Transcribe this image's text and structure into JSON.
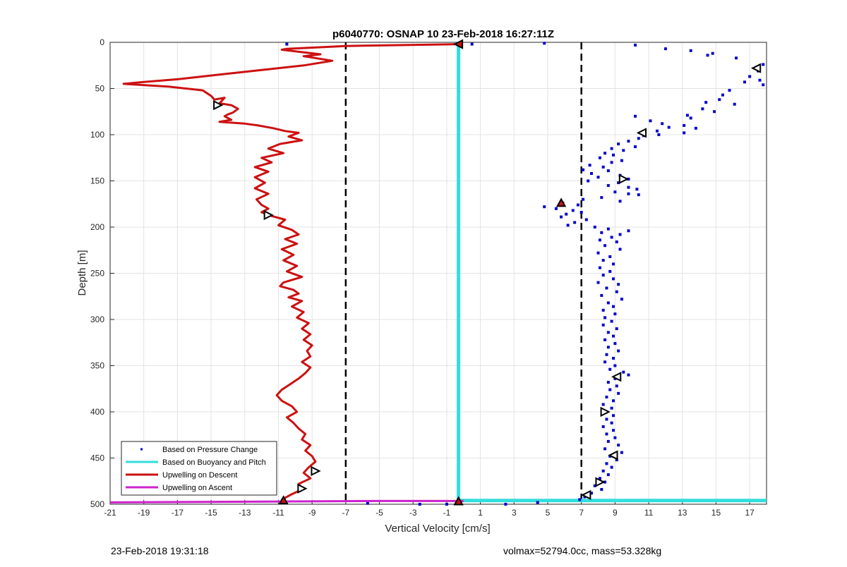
{
  "chart_data": {
    "type": "line",
    "title": "p6040770: OSNAP 10 23-Feb-2018 16:27:11Z",
    "xlabel": "Vertical Velocity [cm/s]",
    "ylabel": "Depth [m]",
    "xlim": [
      -21,
      18
    ],
    "ylim": [
      0,
      500
    ],
    "y_reversed": true,
    "grid": true,
    "xticks": [
      -21,
      -19,
      -17,
      -15,
      -13,
      -11,
      -9,
      -7,
      -5,
      -3,
      -1,
      1,
      3,
      5,
      7,
      9,
      11,
      13,
      15,
      17
    ],
    "yticks": [
      0,
      50,
      100,
      150,
      200,
      250,
      300,
      350,
      400,
      450,
      500
    ],
    "legend_position": "bottom-left",
    "colors": {
      "pressure": "#0000cc",
      "buoyancy": "#33dddd",
      "descent": "#cc1111",
      "ascent": "#cc22cc",
      "threshold": "#000000"
    },
    "thresholds": [
      -7,
      7
    ],
    "series": [
      {
        "name": "Based on Pressure Change",
        "style": "dots",
        "points": [
          [
            -10.5,
            2
          ],
          [
            -0.3,
            2
          ],
          [
            0.5,
            2
          ],
          [
            4.8,
            1
          ],
          [
            10.2,
            3
          ],
          [
            12,
            7
          ],
          [
            13.5,
            9
          ],
          [
            14.8,
            12
          ],
          [
            14.5,
            14
          ],
          [
            16.2,
            17
          ],
          [
            17.8,
            24
          ],
          [
            17.4,
            28
          ],
          [
            17.5,
            31
          ],
          [
            17,
            37
          ],
          [
            17.6,
            41
          ],
          [
            16.7,
            43
          ],
          [
            17.8,
            46
          ],
          [
            15.8,
            52
          ],
          [
            15.4,
            57
          ],
          [
            15.2,
            62
          ],
          [
            14.4,
            65
          ],
          [
            16.1,
            67
          ],
          [
            14.2,
            72
          ],
          [
            14.9,
            75
          ],
          [
            13.3,
            79
          ],
          [
            10.2,
            80
          ],
          [
            13.5,
            82
          ],
          [
            11.1,
            85
          ],
          [
            11.8,
            88
          ],
          [
            13.1,
            90
          ],
          [
            12.2,
            92
          ],
          [
            13.8,
            93
          ],
          [
            11.5,
            96
          ],
          [
            13.1,
            98
          ],
          [
            11.6,
            100
          ],
          [
            10.7,
            101
          ],
          [
            10.4,
            104
          ],
          [
            9.8,
            107
          ],
          [
            9.2,
            110
          ],
          [
            10.2,
            113
          ],
          [
            8.8,
            115
          ],
          [
            9.5,
            117
          ],
          [
            8.4,
            120
          ],
          [
            8.9,
            122
          ],
          [
            8.1,
            125
          ],
          [
            9.4,
            128
          ],
          [
            8.8,
            130
          ],
          [
            7.5,
            133
          ],
          [
            8.3,
            135
          ],
          [
            7.1,
            138
          ],
          [
            8.6,
            139
          ],
          [
            7.6,
            142
          ],
          [
            9.3,
            144
          ],
          [
            8,
            146
          ],
          [
            9.8,
            148
          ],
          [
            7.4,
            150
          ],
          [
            9.2,
            152
          ],
          [
            8.6,
            155
          ],
          [
            9.8,
            157
          ],
          [
            10.3,
            159
          ],
          [
            9,
            162
          ],
          [
            9.8,
            164
          ],
          [
            10.4,
            165
          ],
          [
            8.2,
            168
          ],
          [
            7.1,
            170
          ],
          [
            9.3,
            172
          ],
          [
            5.9,
            174
          ],
          [
            6.8,
            176
          ],
          [
            4.8,
            178
          ],
          [
            5.5,
            180
          ],
          [
            6.5,
            182
          ],
          [
            7,
            184
          ],
          [
            6.1,
            186
          ],
          [
            5.8,
            189
          ],
          [
            7.3,
            192
          ],
          [
            6.6,
            195
          ],
          [
            6.2,
            198
          ],
          [
            7.8,
            200
          ],
          [
            8.6,
            202
          ],
          [
            9.8,
            204
          ],
          [
            8.2,
            206
          ],
          [
            9.3,
            208
          ],
          [
            8.8,
            211
          ],
          [
            8.1,
            214
          ],
          [
            9.1,
            216
          ],
          [
            8.4,
            220
          ],
          [
            9.3,
            224
          ],
          [
            8,
            228
          ],
          [
            8.7,
            232
          ],
          [
            8.3,
            236
          ],
          [
            8.9,
            240
          ],
          [
            8.1,
            244
          ],
          [
            8.7,
            248
          ],
          [
            8.3,
            252
          ],
          [
            8.9,
            256
          ],
          [
            8,
            260
          ],
          [
            9.2,
            262
          ],
          [
            8.5,
            266
          ],
          [
            9.1,
            270
          ],
          [
            8.2,
            274
          ],
          [
            9.4,
            278
          ],
          [
            8.6,
            282
          ],
          [
            8.9,
            286
          ],
          [
            8.3,
            290
          ],
          [
            9,
            294
          ],
          [
            8.4,
            298
          ],
          [
            8.8,
            302
          ],
          [
            8.3,
            306
          ],
          [
            9.1,
            310
          ],
          [
            8.6,
            314
          ],
          [
            8.9,
            318
          ],
          [
            8.4,
            322
          ],
          [
            9,
            326
          ],
          [
            8.6,
            330
          ],
          [
            9.2,
            334
          ],
          [
            8.5,
            338
          ],
          [
            8.9,
            342
          ],
          [
            8.4,
            346
          ],
          [
            9,
            350
          ],
          [
            8.7,
            354
          ],
          [
            9.5,
            357
          ],
          [
            9.8,
            360
          ],
          [
            9,
            364
          ],
          [
            8.6,
            368
          ],
          [
            9.1,
            372
          ],
          [
            8.7,
            376
          ],
          [
            9.2,
            380
          ],
          [
            8.5,
            384
          ],
          [
            8.9,
            388
          ],
          [
            8.3,
            392
          ],
          [
            8.8,
            396
          ],
          [
            8.4,
            400
          ],
          [
            8.9,
            404
          ],
          [
            8.5,
            408
          ],
          [
            8.8,
            412
          ],
          [
            8.3,
            416
          ],
          [
            8.9,
            420
          ],
          [
            8.5,
            424
          ],
          [
            9,
            428
          ],
          [
            8.6,
            432
          ],
          [
            9.2,
            436
          ],
          [
            8.4,
            440
          ],
          [
            9.4,
            444
          ],
          [
            8.7,
            448
          ],
          [
            9.1,
            452
          ],
          [
            8.5,
            456
          ],
          [
            8.8,
            460
          ],
          [
            8.3,
            464
          ],
          [
            8.6,
            468
          ],
          [
            8.1,
            472
          ],
          [
            8.4,
            476
          ],
          [
            7.8,
            480
          ],
          [
            8.2,
            484
          ],
          [
            7.6,
            488
          ],
          [
            7.2,
            492
          ],
          [
            6.9,
            495
          ],
          [
            4.4,
            498
          ],
          [
            2.5,
            500
          ],
          [
            -2.6,
            500
          ],
          [
            -5.7,
            499
          ],
          [
            -1,
            500
          ]
        ]
      },
      {
        "name": "Based on Buoyancy and Pitch",
        "style": "line",
        "points": [
          [
            -0.3,
            0
          ],
          [
            -0.3,
            496
          ],
          [
            18,
            496
          ]
        ]
      },
      {
        "name": "Upwelling on Descent",
        "style": "line",
        "points": [
          [
            -0.3,
            2
          ],
          [
            -7,
            4
          ],
          [
            -10.5,
            7
          ],
          [
            -10.8,
            8
          ],
          [
            -8.5,
            13
          ],
          [
            -9.5,
            15
          ],
          [
            -7.8,
            20
          ],
          [
            -9.5,
            25
          ],
          [
            -12,
            30
          ],
          [
            -14.5,
            35
          ],
          [
            -17,
            40
          ],
          [
            -19,
            43
          ],
          [
            -20.2,
            45
          ],
          [
            -17.5,
            48
          ],
          [
            -15.5,
            52
          ],
          [
            -15,
            58
          ],
          [
            -14.8,
            62
          ],
          [
            -14.2,
            60
          ],
          [
            -14.5,
            66
          ],
          [
            -13.8,
            68
          ],
          [
            -13.4,
            72
          ],
          [
            -13.7,
            76
          ],
          [
            -14,
            78
          ],
          [
            -14.2,
            80
          ],
          [
            -13.8,
            84
          ],
          [
            -14.5,
            86
          ],
          [
            -13,
            88
          ],
          [
            -12.2,
            90
          ],
          [
            -11.3,
            93
          ],
          [
            -10.6,
            96
          ],
          [
            -9.8,
            98
          ],
          [
            -10.4,
            102
          ],
          [
            -9.6,
            106
          ],
          [
            -10.9,
            110
          ],
          [
            -11.6,
            115
          ],
          [
            -10.7,
            120
          ],
          [
            -12,
            125
          ],
          [
            -11.4,
            130
          ],
          [
            -12.4,
            135
          ],
          [
            -11.6,
            140
          ],
          [
            -12.4,
            146
          ],
          [
            -11.8,
            152
          ],
          [
            -12.4,
            158
          ],
          [
            -11.6,
            164
          ],
          [
            -12.3,
            170
          ],
          [
            -12,
            176
          ],
          [
            -11.6,
            180
          ],
          [
            -12,
            184
          ],
          [
            -11.4,
            188
          ],
          [
            -10.6,
            192
          ],
          [
            -11,
            198
          ],
          [
            -10.2,
            203
          ],
          [
            -9.8,
            208
          ],
          [
            -10.6,
            213
          ],
          [
            -9.9,
            218
          ],
          [
            -10.8,
            224
          ],
          [
            -10.1,
            230
          ],
          [
            -10.7,
            236
          ],
          [
            -9.9,
            242
          ],
          [
            -10.5,
            248
          ],
          [
            -9.6,
            254
          ],
          [
            -10.7,
            260
          ],
          [
            -10.9,
            264
          ],
          [
            -10.1,
            268
          ],
          [
            -9.8,
            272
          ],
          [
            -10.4,
            276
          ],
          [
            -9.6,
            280
          ],
          [
            -10.2,
            286
          ],
          [
            -9.5,
            292
          ],
          [
            -9.9,
            298
          ],
          [
            -9.2,
            304
          ],
          [
            -9.6,
            310
          ],
          [
            -9.1,
            316
          ],
          [
            -9.5,
            322
          ],
          [
            -9,
            328
          ],
          [
            -9.3,
            334
          ],
          [
            -9.1,
            340
          ],
          [
            -9.6,
            346
          ],
          [
            -9.1,
            352
          ],
          [
            -9.4,
            358
          ],
          [
            -9.8,
            364
          ],
          [
            -10.3,
            370
          ],
          [
            -10.8,
            376
          ],
          [
            -11.1,
            382
          ],
          [
            -10.8,
            388
          ],
          [
            -10.2,
            394
          ],
          [
            -9.9,
            400
          ],
          [
            -10.5,
            406
          ],
          [
            -10.1,
            412
          ],
          [
            -9.8,
            418
          ],
          [
            -9.4,
            424
          ],
          [
            -9.6,
            430
          ],
          [
            -9.1,
            436
          ],
          [
            -9.4,
            442
          ],
          [
            -9,
            448
          ],
          [
            -8.8,
            454
          ],
          [
            -9.2,
            460
          ],
          [
            -9.5,
            466
          ],
          [
            -9.1,
            472
          ],
          [
            -9.8,
            478
          ],
          [
            -9.6,
            484
          ],
          [
            -10.3,
            490
          ],
          [
            -10.8,
            495
          ]
        ]
      },
      {
        "name": "Upwelling on Ascent",
        "style": "line",
        "points": [
          [
            -21,
            498
          ],
          [
            -10.8,
            497
          ],
          [
            -5,
            496.5
          ],
          [
            0,
            496.5
          ]
        ]
      }
    ],
    "markers": [
      {
        "x": -0.3,
        "y": 2,
        "dir": "left",
        "filled": true
      },
      {
        "x": 17.4,
        "y": 28,
        "dir": "left",
        "filled": false
      },
      {
        "x": -14.6,
        "y": 68,
        "dir": "right",
        "filled": false
      },
      {
        "x": 10.6,
        "y": 98,
        "dir": "left",
        "filled": false
      },
      {
        "x": 9.5,
        "y": 148,
        "dir": "right",
        "filled": false
      },
      {
        "x": 5.8,
        "y": 174,
        "dir": "up",
        "filled": true
      },
      {
        "x": -11.6,
        "y": 187,
        "dir": "right",
        "filled": false
      },
      {
        "x": 9.1,
        "y": 362,
        "dir": "left",
        "filled": false
      },
      {
        "x": 8.4,
        "y": 400,
        "dir": "right",
        "filled": false
      },
      {
        "x": 8.9,
        "y": 447,
        "dir": "left",
        "filled": false
      },
      {
        "x": -8.8,
        "y": 464,
        "dir": "right",
        "filled": false
      },
      {
        "x": 8.1,
        "y": 476,
        "dir": "right",
        "filled": false
      },
      {
        "x": -9.6,
        "y": 483,
        "dir": "right",
        "filled": false
      },
      {
        "x": 7.3,
        "y": 490,
        "dir": "left",
        "filled": false
      },
      {
        "x": -10.7,
        "y": 496,
        "dir": "up",
        "filled": true
      },
      {
        "x": -0.3,
        "y": 497,
        "dir": "up",
        "filled": true
      }
    ]
  },
  "footer": {
    "timestamp": "23-Feb-2018 19:31:18",
    "info": "volmax=52794.0cc, mass=53.328kg"
  }
}
